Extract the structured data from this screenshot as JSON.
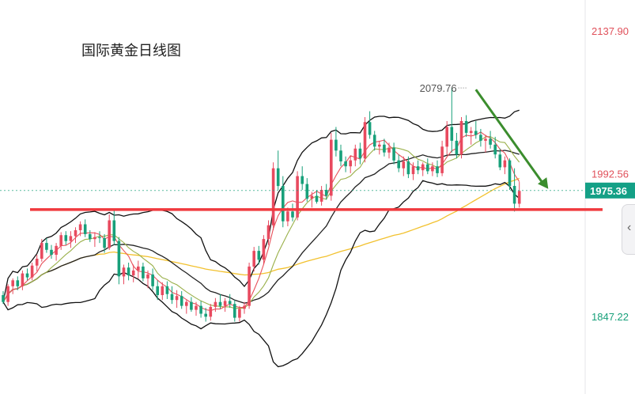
{
  "chart_data": {
    "type": "candlestick",
    "title": "国际黄金日线图",
    "price_axis": {
      "min": 1770,
      "max": 2145,
      "labels": [
        {
          "value": 2137.9,
          "text": "2137.90",
          "color": "#e0505a"
        },
        {
          "value": 1992.56,
          "text": "1992.56",
          "color": "#e0505a"
        },
        {
          "value": 1847.22,
          "text": "1847.22",
          "color": "#17a07a"
        }
      ]
    },
    "current_price": {
      "value": 1975.36,
      "text": "1975.36",
      "color": "#14a086"
    },
    "annotation_high": {
      "value": 2079.76,
      "text": "2079.76",
      "index": 96
    },
    "support_line": {
      "value": 1956,
      "color": "#f03a3e"
    },
    "trend_arrow": {
      "from": {
        "index": 98,
        "value": 2078
      },
      "to": {
        "index": 113,
        "value": 1977
      },
      "color": "#3b8d2d"
    },
    "colors": {
      "up": "#e84a5f",
      "down": "#17a07a",
      "ma5": "#e8505a",
      "ma10": "#9ab04a",
      "ma20": "#222222",
      "ma60": "#f2c12e",
      "boll": "#111111"
    },
    "candles": [
      {
        "o": 1869,
        "h": 1873,
        "l": 1860,
        "c": 1862
      },
      {
        "o": 1862,
        "h": 1880,
        "l": 1858,
        "c": 1878
      },
      {
        "o": 1878,
        "h": 1886,
        "l": 1870,
        "c": 1884
      },
      {
        "o": 1884,
        "h": 1888,
        "l": 1874,
        "c": 1878
      },
      {
        "o": 1878,
        "h": 1894,
        "l": 1874,
        "c": 1891
      },
      {
        "o": 1891,
        "h": 1896,
        "l": 1884,
        "c": 1887
      },
      {
        "o": 1887,
        "h": 1902,
        "l": 1884,
        "c": 1899
      },
      {
        "o": 1899,
        "h": 1910,
        "l": 1893,
        "c": 1906
      },
      {
        "o": 1906,
        "h": 1926,
        "l": 1903,
        "c": 1922
      },
      {
        "o": 1922,
        "h": 1927,
        "l": 1912,
        "c": 1915
      },
      {
        "o": 1915,
        "h": 1920,
        "l": 1906,
        "c": 1910
      },
      {
        "o": 1910,
        "h": 1922,
        "l": 1904,
        "c": 1919
      },
      {
        "o": 1919,
        "h": 1933,
        "l": 1915,
        "c": 1930
      },
      {
        "o": 1930,
        "h": 1934,
        "l": 1920,
        "c": 1924
      },
      {
        "o": 1924,
        "h": 1934,
        "l": 1917,
        "c": 1929
      },
      {
        "o": 1929,
        "h": 1938,
        "l": 1922,
        "c": 1935
      },
      {
        "o": 1935,
        "h": 1944,
        "l": 1929,
        "c": 1941
      },
      {
        "o": 1941,
        "h": 1946,
        "l": 1928,
        "c": 1931
      },
      {
        "o": 1931,
        "h": 1935,
        "l": 1923,
        "c": 1926
      },
      {
        "o": 1926,
        "h": 1933,
        "l": 1918,
        "c": 1928
      },
      {
        "o": 1928,
        "h": 1934,
        "l": 1922,
        "c": 1927
      },
      {
        "o": 1927,
        "h": 1931,
        "l": 1912,
        "c": 1917
      },
      {
        "o": 1917,
        "h": 1951,
        "l": 1915,
        "c": 1945
      },
      {
        "o": 1945,
        "h": 1957,
        "l": 1920,
        "c": 1924
      },
      {
        "o": 1924,
        "h": 1928,
        "l": 1880,
        "c": 1888
      },
      {
        "o": 1888,
        "h": 1900,
        "l": 1880,
        "c": 1897
      },
      {
        "o": 1897,
        "h": 1902,
        "l": 1884,
        "c": 1889
      },
      {
        "o": 1889,
        "h": 1900,
        "l": 1882,
        "c": 1894
      },
      {
        "o": 1894,
        "h": 1904,
        "l": 1886,
        "c": 1898
      },
      {
        "o": 1898,
        "h": 1902,
        "l": 1883,
        "c": 1886
      },
      {
        "o": 1886,
        "h": 1894,
        "l": 1876,
        "c": 1890
      },
      {
        "o": 1890,
        "h": 1896,
        "l": 1874,
        "c": 1878
      },
      {
        "o": 1878,
        "h": 1884,
        "l": 1864,
        "c": 1869
      },
      {
        "o": 1869,
        "h": 1882,
        "l": 1864,
        "c": 1878
      },
      {
        "o": 1878,
        "h": 1883,
        "l": 1865,
        "c": 1870
      },
      {
        "o": 1870,
        "h": 1878,
        "l": 1860,
        "c": 1864
      },
      {
        "o": 1864,
        "h": 1874,
        "l": 1856,
        "c": 1868
      },
      {
        "o": 1868,
        "h": 1873,
        "l": 1855,
        "c": 1858
      },
      {
        "o": 1858,
        "h": 1864,
        "l": 1850,
        "c": 1862
      },
      {
        "o": 1862,
        "h": 1867,
        "l": 1852,
        "c": 1854
      },
      {
        "o": 1854,
        "h": 1862,
        "l": 1848,
        "c": 1858
      },
      {
        "o": 1858,
        "h": 1863,
        "l": 1846,
        "c": 1850
      },
      {
        "o": 1850,
        "h": 1856,
        "l": 1842,
        "c": 1847
      },
      {
        "o": 1847,
        "h": 1860,
        "l": 1843,
        "c": 1857
      },
      {
        "o": 1857,
        "h": 1866,
        "l": 1852,
        "c": 1862
      },
      {
        "o": 1862,
        "h": 1870,
        "l": 1855,
        "c": 1858
      },
      {
        "o": 1858,
        "h": 1866,
        "l": 1852,
        "c": 1863
      },
      {
        "o": 1863,
        "h": 1870,
        "l": 1856,
        "c": 1860
      },
      {
        "o": 1860,
        "h": 1864,
        "l": 1842,
        "c": 1846
      },
      {
        "o": 1846,
        "h": 1858,
        "l": 1842,
        "c": 1855
      },
      {
        "o": 1855,
        "h": 1862,
        "l": 1850,
        "c": 1858
      },
      {
        "o": 1858,
        "h": 1902,
        "l": 1855,
        "c": 1898
      },
      {
        "o": 1898,
        "h": 1918,
        "l": 1893,
        "c": 1914
      },
      {
        "o": 1914,
        "h": 1919,
        "l": 1900,
        "c": 1905
      },
      {
        "o": 1905,
        "h": 1930,
        "l": 1900,
        "c": 1926
      },
      {
        "o": 1926,
        "h": 1945,
        "l": 1920,
        "c": 1940
      },
      {
        "o": 1940,
        "h": 2004,
        "l": 1935,
        "c": 1998
      },
      {
        "o": 1998,
        "h": 2016,
        "l": 1976,
        "c": 1980
      },
      {
        "o": 1980,
        "h": 1990,
        "l": 1938,
        "c": 1944
      },
      {
        "o": 1944,
        "h": 1958,
        "l": 1939,
        "c": 1954
      },
      {
        "o": 1954,
        "h": 1962,
        "l": 1944,
        "c": 1948
      },
      {
        "o": 1948,
        "h": 1995,
        "l": 1945,
        "c": 1990
      },
      {
        "o": 1990,
        "h": 2000,
        "l": 1976,
        "c": 1982
      },
      {
        "o": 1982,
        "h": 1988,
        "l": 1964,
        "c": 1967
      },
      {
        "o": 1967,
        "h": 1974,
        "l": 1958,
        "c": 1970
      },
      {
        "o": 1970,
        "h": 1976,
        "l": 1962,
        "c": 1964
      },
      {
        "o": 1964,
        "h": 1980,
        "l": 1960,
        "c": 1976
      },
      {
        "o": 1976,
        "h": 1982,
        "l": 1966,
        "c": 1970
      },
      {
        "o": 1970,
        "h": 2034,
        "l": 1965,
        "c": 2027
      },
      {
        "o": 2027,
        "h": 2040,
        "l": 2010,
        "c": 2016
      },
      {
        "o": 2016,
        "h": 2022,
        "l": 2000,
        "c": 2005
      },
      {
        "o": 2005,
        "h": 2010,
        "l": 1994,
        "c": 2000
      },
      {
        "o": 2000,
        "h": 2010,
        "l": 1993,
        "c": 2006
      },
      {
        "o": 2006,
        "h": 2022,
        "l": 2000,
        "c": 2018
      },
      {
        "o": 2018,
        "h": 2024,
        "l": 2002,
        "c": 2008
      },
      {
        "o": 2008,
        "h": 2050,
        "l": 2004,
        "c": 2045
      },
      {
        "o": 2045,
        "h": 2056,
        "l": 2028,
        "c": 2032
      },
      {
        "o": 2032,
        "h": 2036,
        "l": 2016,
        "c": 2020
      },
      {
        "o": 2020,
        "h": 2026,
        "l": 2012,
        "c": 2022
      },
      {
        "o": 2022,
        "h": 2028,
        "l": 2010,
        "c": 2014
      },
      {
        "o": 2014,
        "h": 2024,
        "l": 2008,
        "c": 2019
      },
      {
        "o": 2019,
        "h": 2024,
        "l": 2002,
        "c": 2006
      },
      {
        "o": 2006,
        "h": 2012,
        "l": 1994,
        "c": 1998
      },
      {
        "o": 1998,
        "h": 2010,
        "l": 1990,
        "c": 2005
      },
      {
        "o": 2005,
        "h": 2010,
        "l": 1988,
        "c": 1992
      },
      {
        "o": 1992,
        "h": 2004,
        "l": 1986,
        "c": 2000
      },
      {
        "o": 2000,
        "h": 2006,
        "l": 1992,
        "c": 1996
      },
      {
        "o": 1996,
        "h": 2004,
        "l": 1990,
        "c": 2002
      },
      {
        "o": 2002,
        "h": 2008,
        "l": 1992,
        "c": 1995
      },
      {
        "o": 1995,
        "h": 2004,
        "l": 1990,
        "c": 2000
      },
      {
        "o": 2000,
        "h": 2006,
        "l": 1989,
        "c": 1993
      },
      {
        "o": 1993,
        "h": 2026,
        "l": 1990,
        "c": 2020
      },
      {
        "o": 2020,
        "h": 2046,
        "l": 2012,
        "c": 2040
      },
      {
        "o": 2040,
        "h": 2080,
        "l": 2014,
        "c": 2026
      },
      {
        "o": 2026,
        "h": 2034,
        "l": 2008,
        "c": 2012
      },
      {
        "o": 2012,
        "h": 2050,
        "l": 2008,
        "c": 2046
      },
      {
        "o": 2046,
        "h": 2052,
        "l": 2030,
        "c": 2034
      },
      {
        "o": 2034,
        "h": 2040,
        "l": 2022,
        "c": 2036
      },
      {
        "o": 2036,
        "h": 2046,
        "l": 2028,
        "c": 2032
      },
      {
        "o": 2032,
        "h": 2038,
        "l": 2020,
        "c": 2026
      },
      {
        "o": 2026,
        "h": 2032,
        "l": 2014,
        "c": 2028
      },
      {
        "o": 2028,
        "h": 2036,
        "l": 2018,
        "c": 2022
      },
      {
        "o": 2022,
        "h": 2030,
        "l": 2008,
        "c": 2012
      },
      {
        "o": 2012,
        "h": 2018,
        "l": 1996,
        "c": 1999
      },
      {
        "o": 1999,
        "h": 2010,
        "l": 1992,
        "c": 2006
      },
      {
        "o": 2006,
        "h": 2008,
        "l": 1976,
        "c": 1980
      },
      {
        "o": 1980,
        "h": 1998,
        "l": 1954,
        "c": 1962
      },
      {
        "o": 1962,
        "h": 1984,
        "l": 1958,
        "c": 1975
      }
    ]
  }
}
